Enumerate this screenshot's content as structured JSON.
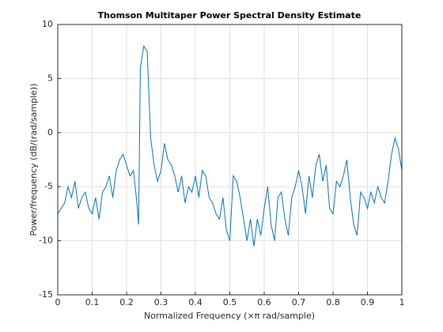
{
  "chart_data": {
    "type": "line",
    "title": "Thomson Multitaper Power Spectral Density Estimate",
    "xlabel": "Normalized Frequency  (×π rad/sample)",
    "ylabel": "Power/frequency (dB/(rad/sample))",
    "color": "#0072bd",
    "grid": true,
    "xlim": [
      0,
      1
    ],
    "ylim": [
      -15,
      10
    ],
    "xticks": [
      0,
      0.1,
      0.2,
      0.3,
      0.4,
      0.5,
      0.6,
      0.7,
      0.8,
      0.9,
      1
    ],
    "yticks": [
      -15,
      -10,
      -5,
      0,
      5,
      10
    ],
    "x": [
      0,
      0.01,
      0.02,
      0.03,
      0.04,
      0.05,
      0.06,
      0.07,
      0.08,
      0.09,
      0.1,
      0.11,
      0.12,
      0.13,
      0.14,
      0.15,
      0.16,
      0.17,
      0.18,
      0.19,
      0.2,
      0.21,
      0.22,
      0.23,
      0.235,
      0.24,
      0.25,
      0.26,
      0.27,
      0.28,
      0.29,
      0.3,
      0.31,
      0.32,
      0.33,
      0.34,
      0.35,
      0.36,
      0.37,
      0.38,
      0.39,
      0.4,
      0.41,
      0.42,
      0.43,
      0.44,
      0.45,
      0.46,
      0.47,
      0.48,
      0.49,
      0.5,
      0.51,
      0.52,
      0.53,
      0.54,
      0.55,
      0.56,
      0.57,
      0.58,
      0.59,
      0.6,
      0.61,
      0.62,
      0.63,
      0.64,
      0.65,
      0.66,
      0.67,
      0.68,
      0.69,
      0.7,
      0.71,
      0.72,
      0.73,
      0.74,
      0.75,
      0.76,
      0.77,
      0.78,
      0.79,
      0.8,
      0.81,
      0.82,
      0.83,
      0.84,
      0.85,
      0.86,
      0.87,
      0.88,
      0.89,
      0.9,
      0.91,
      0.92,
      0.93,
      0.94,
      0.95,
      0.96,
      0.97,
      0.98,
      0.99,
      1
    ],
    "values": [
      -7.5,
      -7,
      -6.5,
      -5,
      -6,
      -4.5,
      -7,
      -6,
      -5.5,
      -7,
      -7.5,
      -6,
      -8,
      -5.5,
      -5,
      -4,
      -6,
      -3.5,
      -2.5,
      -2,
      -3,
      -4,
      -3.5,
      -6.5,
      -8.5,
      6,
      8,
      7.5,
      -0.5,
      -3,
      -4.5,
      -3.5,
      -1,
      -2.5,
      -3,
      -4,
      -5.5,
      -4,
      -6.5,
      -5,
      -5.5,
      -4,
      -6,
      -3.5,
      -4,
      -6,
      -6.5,
      -7.5,
      -8,
      -6,
      -9,
      -10,
      -4,
      -4.5,
      -6,
      -8,
      -10,
      -8,
      -10.5,
      -8,
      -9.5,
      -7,
      -5,
      -8.5,
      -10,
      -6,
      -5.5,
      -8,
      -9.5,
      -6,
      -5,
      -3.5,
      -5,
      -7.5,
      -4,
      -6,
      -3,
      -2,
      -4.5,
      -3,
      -7,
      -7.5,
      -4.5,
      -5,
      -4,
      -2.5,
      -6,
      -8.5,
      -9.5,
      -5.5,
      -6,
      -7,
      -5.5,
      -6.5,
      -5,
      -6,
      -6.5,
      -4.5,
      -2,
      -0.5,
      -1.5,
      -3.5
    ]
  }
}
